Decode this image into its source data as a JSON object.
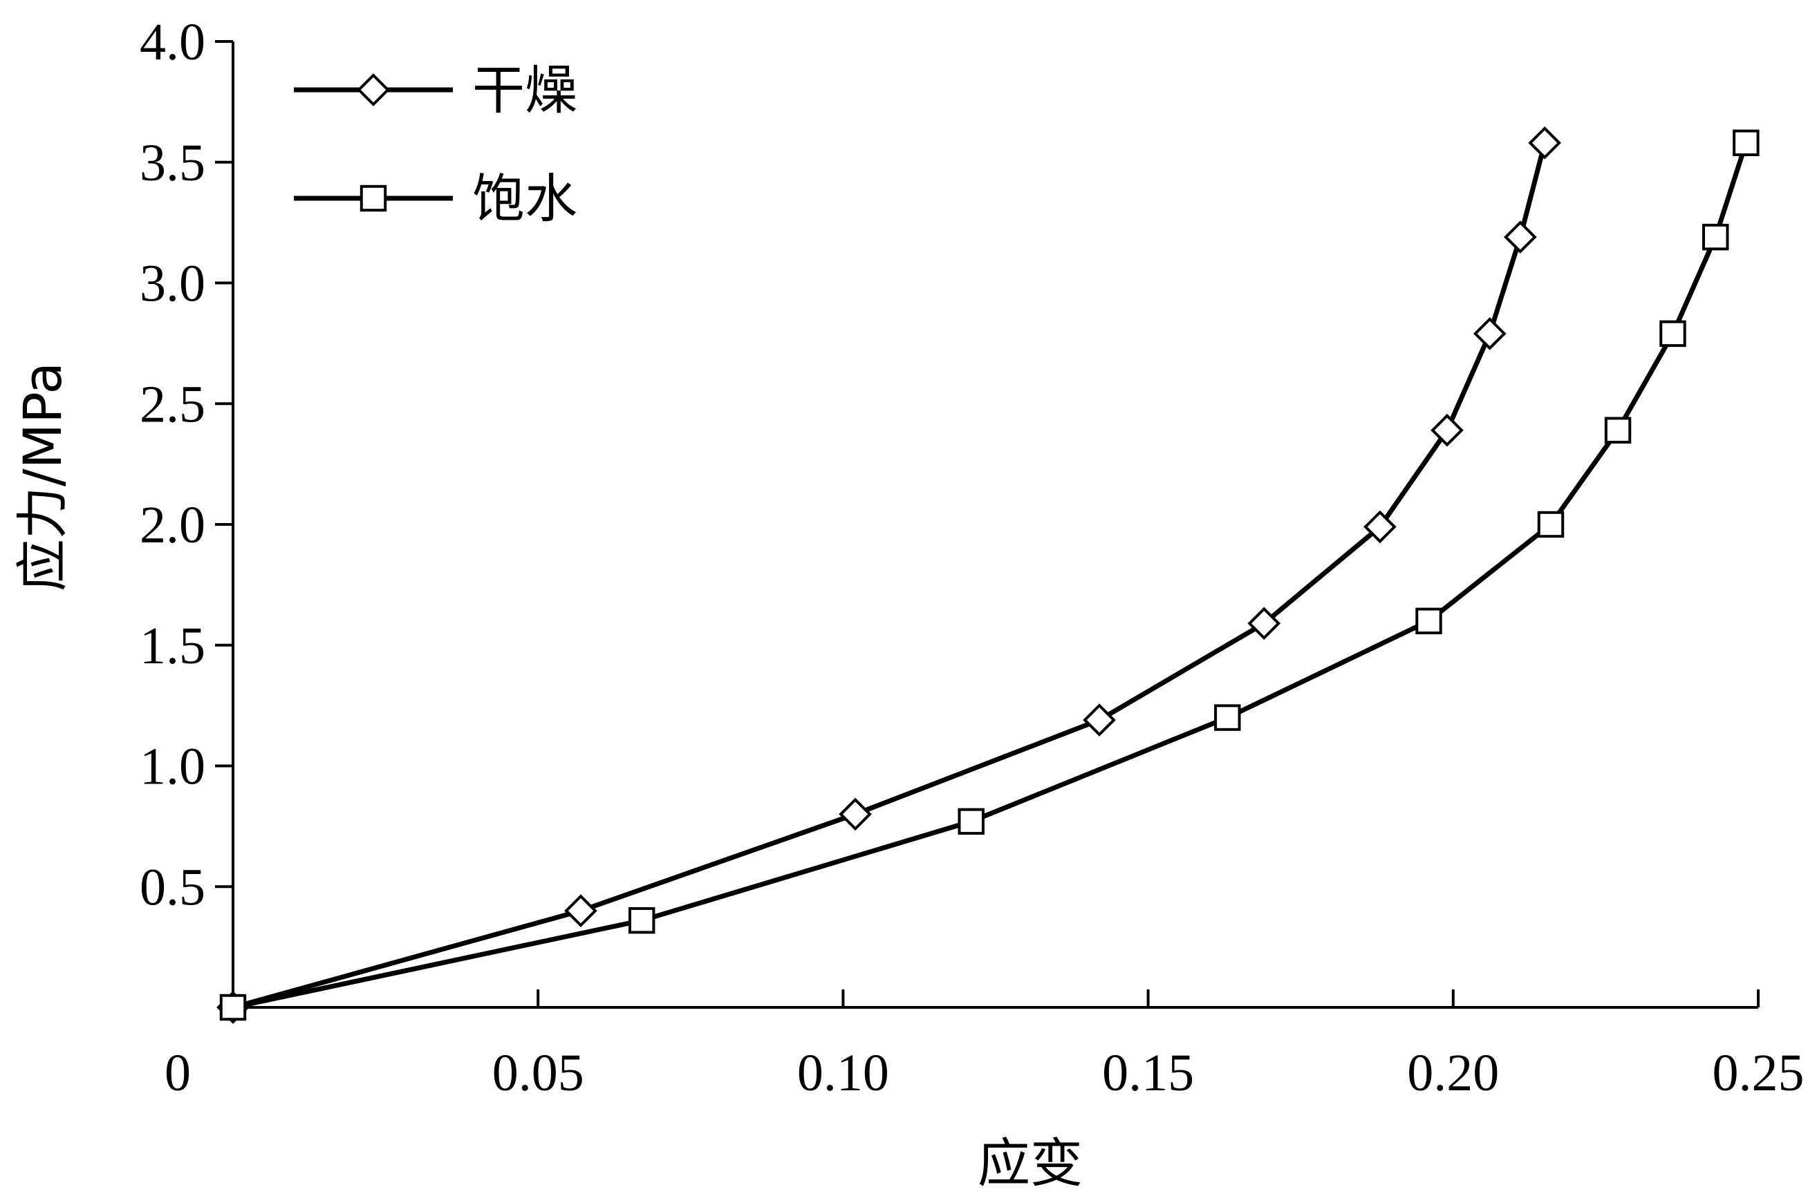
{
  "chart_data": {
    "type": "line",
    "xlabel": "应变",
    "ylabel": "应力/MPa",
    "xlim": [
      0,
      0.25
    ],
    "ylim": [
      0,
      4.0
    ],
    "x_ticks": [
      {
        "value": 0,
        "label": "0"
      },
      {
        "value": 0.05,
        "label": "0.05"
      },
      {
        "value": 0.1,
        "label": "0.10"
      },
      {
        "value": 0.15,
        "label": "0.15"
      },
      {
        "value": 0.2,
        "label": "0.20"
      },
      {
        "value": 0.25,
        "label": "0.25"
      }
    ],
    "y_ticks": [
      {
        "value": 0.5,
        "label": "0.5"
      },
      {
        "value": 1.0,
        "label": "1.0"
      },
      {
        "value": 1.5,
        "label": "1.5"
      },
      {
        "value": 2.0,
        "label": "2.0"
      },
      {
        "value": 2.5,
        "label": "2.5"
      },
      {
        "value": 3.0,
        "label": "3.0"
      },
      {
        "value": 3.5,
        "label": "3.5"
      },
      {
        "value": 4.0,
        "label": "4.0"
      }
    ],
    "grid": false,
    "legend_position": "top-left",
    "series": [
      {
        "name": "干燥",
        "marker": "diamond",
        "color": "#000000",
        "points": [
          [
            0,
            0
          ],
          [
            0.057,
            0.4
          ],
          [
            0.102,
            0.8
          ],
          [
            0.142,
            1.19
          ],
          [
            0.169,
            1.59
          ],
          [
            0.188,
            1.99
          ],
          [
            0.199,
            2.39
          ],
          [
            0.206,
            2.79
          ],
          [
            0.211,
            3.19
          ],
          [
            0.215,
            3.58
          ]
        ]
      },
      {
        "name": "饱水",
        "marker": "square",
        "color": "#000000",
        "points": [
          [
            0,
            0
          ],
          [
            0.067,
            0.36
          ],
          [
            0.121,
            0.77
          ],
          [
            0.163,
            1.2
          ],
          [
            0.196,
            1.6
          ],
          [
            0.216,
            2.0
          ],
          [
            0.227,
            2.39
          ],
          [
            0.236,
            2.79
          ],
          [
            0.243,
            3.19
          ],
          [
            0.248,
            3.58
          ]
        ]
      }
    ]
  }
}
